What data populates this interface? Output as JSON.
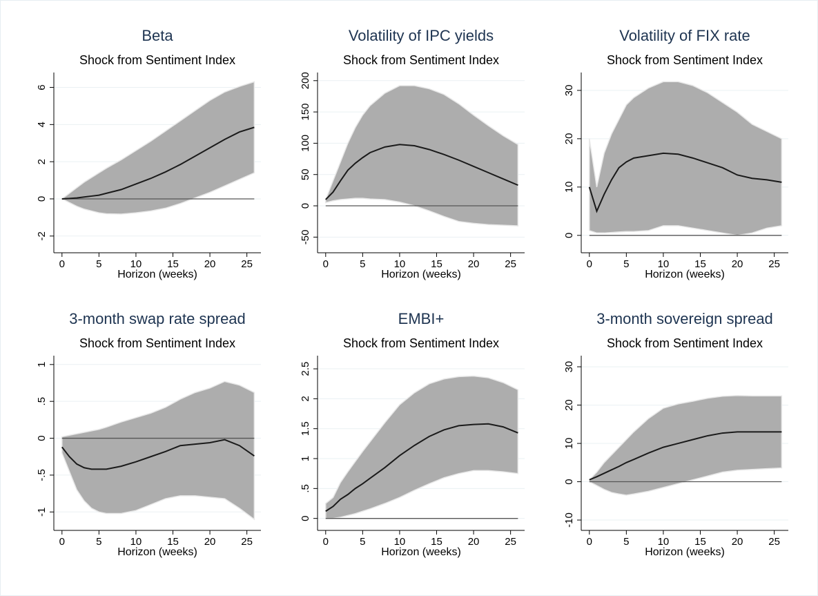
{
  "chart_data": [
    {
      "type": "line",
      "title": "Beta",
      "subtitle": "Shock from Sentiment Index",
      "xlabel": "Horizon (weeks)",
      "x": [
        0,
        1,
        2,
        3,
        4,
        5,
        6,
        8,
        10,
        12,
        14,
        16,
        18,
        20,
        22,
        24,
        26
      ],
      "values": [
        0,
        0.02,
        0.05,
        0.1,
        0.15,
        0.2,
        0.3,
        0.5,
        0.8,
        1.1,
        1.45,
        1.85,
        2.3,
        2.75,
        3.2,
        3.6,
        3.85
      ],
      "color": "#1a1a1a",
      "band": {
        "color": "#adadad",
        "upper": [
          0,
          0.3,
          0.6,
          0.9,
          1.15,
          1.4,
          1.65,
          2.1,
          2.6,
          3.1,
          3.65,
          4.2,
          4.75,
          5.3,
          5.75,
          6.05,
          6.3
        ],
        "lower": [
          0,
          -0.2,
          -0.4,
          -0.55,
          -0.65,
          -0.75,
          -0.8,
          -0.82,
          -0.75,
          -0.65,
          -0.5,
          -0.25,
          0.05,
          0.35,
          0.7,
          1.05,
          1.4
        ]
      },
      "refline": 0,
      "xlim": [
        -1.1,
        26.9
      ],
      "xticks": [
        0,
        5,
        10,
        15,
        20,
        25
      ],
      "ylim": [
        -2.9,
        6.8
      ],
      "yticks": [
        -2,
        0,
        2,
        4,
        6
      ],
      "grid": true
    },
    {
      "type": "line",
      "title": "Volatility of IPC yields",
      "subtitle": "Shock from Sentiment Index",
      "xlabel": "Horizon (weeks)",
      "x": [
        0,
        1,
        2,
        3,
        4,
        5,
        6,
        8,
        10,
        12,
        14,
        16,
        18,
        20,
        22,
        24,
        26
      ],
      "values": [
        10,
        22,
        40,
        57,
        68,
        77,
        85,
        94,
        98,
        96,
        90,
        82,
        73,
        63,
        53,
        43,
        33
      ],
      "color": "#1a1a1a",
      "band": {
        "color": "#adadad",
        "upper": [
          10,
          40,
          70,
          100,
          125,
          145,
          160,
          180,
          192,
          192,
          187,
          178,
          163,
          145,
          128,
          112,
          98
        ],
        "lower": [
          5,
          8,
          10,
          11,
          12,
          12,
          11,
          10,
          6,
          0,
          -8,
          -17,
          -25,
          -28,
          -30,
          -31,
          -32
        ]
      },
      "refline": 0,
      "xlim": [
        -1.1,
        26.9
      ],
      "xticks": [
        0,
        5,
        10,
        15,
        20,
        25
      ],
      "ylim": [
        -75,
        213
      ],
      "yticks": [
        -50,
        0,
        50,
        100,
        150,
        200
      ],
      "grid": true
    },
    {
      "type": "line",
      "title": "Volatility of FIX rate",
      "subtitle": "Shock from Sentiment Index",
      "xlabel": "Horizon (weeks)",
      "x": [
        0,
        1,
        2,
        3,
        4,
        5,
        6,
        8,
        10,
        12,
        14,
        16,
        18,
        20,
        22,
        24,
        26
      ],
      "values": [
        10,
        5,
        8.5,
        11.5,
        14,
        15.2,
        16,
        16.5,
        17,
        16.8,
        16,
        15,
        14,
        12.5,
        11.8,
        11.5,
        11
      ],
      "color": "#1a1a1a",
      "band": {
        "color": "#adadad",
        "upper": [
          20,
          10,
          17,
          21,
          24,
          27,
          28.5,
          30.5,
          31.8,
          31.8,
          31,
          29.5,
          27.5,
          25.5,
          23,
          21.5,
          20
        ],
        "lower": [
          1,
          0.5,
          0.5,
          0.6,
          0.7,
          0.8,
          0.8,
          1,
          2,
          2,
          1.5,
          1,
          0.5,
          0,
          0.5,
          1.5,
          2
        ]
      },
      "refline": 0,
      "xlim": [
        -1.1,
        26.9
      ],
      "xticks": [
        0,
        5,
        10,
        15,
        20,
        25
      ],
      "ylim": [
        -3.6,
        33.7
      ],
      "yticks": [
        0,
        10,
        20,
        30
      ],
      "grid": true
    },
    {
      "type": "line",
      "title": "3-month swap rate spread",
      "subtitle": "Shock from Sentiment Index",
      "xlabel": "Horizon (weeks)",
      "x": [
        0,
        1,
        2,
        3,
        4,
        5,
        6,
        8,
        10,
        12,
        14,
        16,
        18,
        20,
        22,
        24,
        26
      ],
      "values": [
        -0.12,
        -0.25,
        -0.35,
        -0.4,
        -0.42,
        -0.42,
        -0.42,
        -0.38,
        -0.32,
        -0.25,
        -0.18,
        -0.1,
        -0.08,
        -0.06,
        -0.02,
        -0.1,
        -0.24
      ],
      "color": "#1a1a1a",
      "band": {
        "color": "#adadad",
        "upper": [
          0.02,
          0.04,
          0.06,
          0.08,
          0.1,
          0.12,
          0.15,
          0.22,
          0.28,
          0.34,
          0.42,
          0.53,
          0.62,
          0.68,
          0.77,
          0.72,
          0.62
        ],
        "lower": [
          -0.2,
          -0.45,
          -0.7,
          -0.85,
          -0.95,
          -1,
          -1.02,
          -1.02,
          -0.98,
          -0.9,
          -0.82,
          -0.78,
          -0.78,
          -0.8,
          -0.82,
          -0.95,
          -1.1
        ]
      },
      "refline": 0,
      "xlim": [
        -1.1,
        26.9
      ],
      "xticks": [
        0,
        5,
        10,
        15,
        20,
        25
      ],
      "ylim": [
        -1.25,
        1.12
      ],
      "yticks": [
        -1,
        {
          "value": -0.5,
          "label": "-.5"
        },
        0,
        {
          "value": 0.5,
          "label": ".5"
        },
        1
      ],
      "grid": true
    },
    {
      "type": "line",
      "title": "EMBI+",
      "subtitle": "Shock from Sentiment Index",
      "xlabel": "Horizon (weeks)",
      "x": [
        0,
        1,
        2,
        3,
        4,
        5,
        6,
        8,
        10,
        12,
        14,
        16,
        18,
        20,
        22,
        24,
        26
      ],
      "values": [
        0.12,
        0.2,
        0.32,
        0.4,
        0.5,
        0.58,
        0.67,
        0.85,
        1.05,
        1.22,
        1.37,
        1.48,
        1.55,
        1.57,
        1.58,
        1.53,
        1.43
      ],
      "color": "#1a1a1a",
      "band": {
        "color": "#adadad",
        "upper": [
          0.25,
          0.35,
          0.6,
          0.78,
          0.95,
          1.12,
          1.28,
          1.6,
          1.9,
          2.1,
          2.25,
          2.33,
          2.37,
          2.38,
          2.35,
          2.27,
          2.15
        ],
        "lower": [
          0,
          0,
          0.02,
          0.05,
          0.08,
          0.12,
          0.16,
          0.25,
          0.35,
          0.47,
          0.58,
          0.68,
          0.75,
          0.8,
          0.8,
          0.78,
          0.75
        ]
      },
      "refline": 0,
      "xlim": [
        -1.1,
        26.9
      ],
      "xticks": [
        0,
        5,
        10,
        15,
        20,
        25
      ],
      "ylim": [
        -0.2,
        2.72
      ],
      "yticks": [
        0,
        {
          "value": 0.5,
          "label": ".5"
        },
        1,
        1.5,
        2,
        2.5
      ],
      "grid": true
    },
    {
      "type": "line",
      "title": "3-month sovereign spread",
      "subtitle": "Shock from Sentiment Index",
      "xlabel": "Horizon (weeks)",
      "x": [
        0,
        1,
        2,
        3,
        4,
        5,
        6,
        8,
        10,
        12,
        14,
        16,
        18,
        20,
        22,
        24,
        26
      ],
      "values": [
        0.5,
        1.3,
        2.2,
        3.1,
        4,
        5,
        5.8,
        7.5,
        9,
        10,
        11,
        12,
        12.7,
        13,
        13,
        13,
        13
      ],
      "color": "#1a1a1a",
      "band": {
        "color": "#adadad",
        "upper": [
          0.5,
          2.5,
          5,
          7,
          9,
          11,
          13,
          16.5,
          19.2,
          20.3,
          21,
          21.8,
          22.3,
          22.5,
          22.4,
          22.4,
          22.4
        ],
        "lower": [
          0,
          -1,
          -2,
          -2.8,
          -3.2,
          -3.5,
          -3.2,
          -2.5,
          -1.5,
          -0.5,
          0.5,
          1.5,
          2.5,
          3,
          3.2,
          3.4,
          3.6
        ]
      },
      "refline": 0,
      "xlim": [
        -1.1,
        26.9
      ],
      "xticks": [
        0,
        5,
        10,
        15,
        20,
        25
      ],
      "ylim": [
        -12.7,
        32.9
      ],
      "yticks": [
        -10,
        0,
        10,
        20,
        30
      ],
      "grid": true
    }
  ]
}
